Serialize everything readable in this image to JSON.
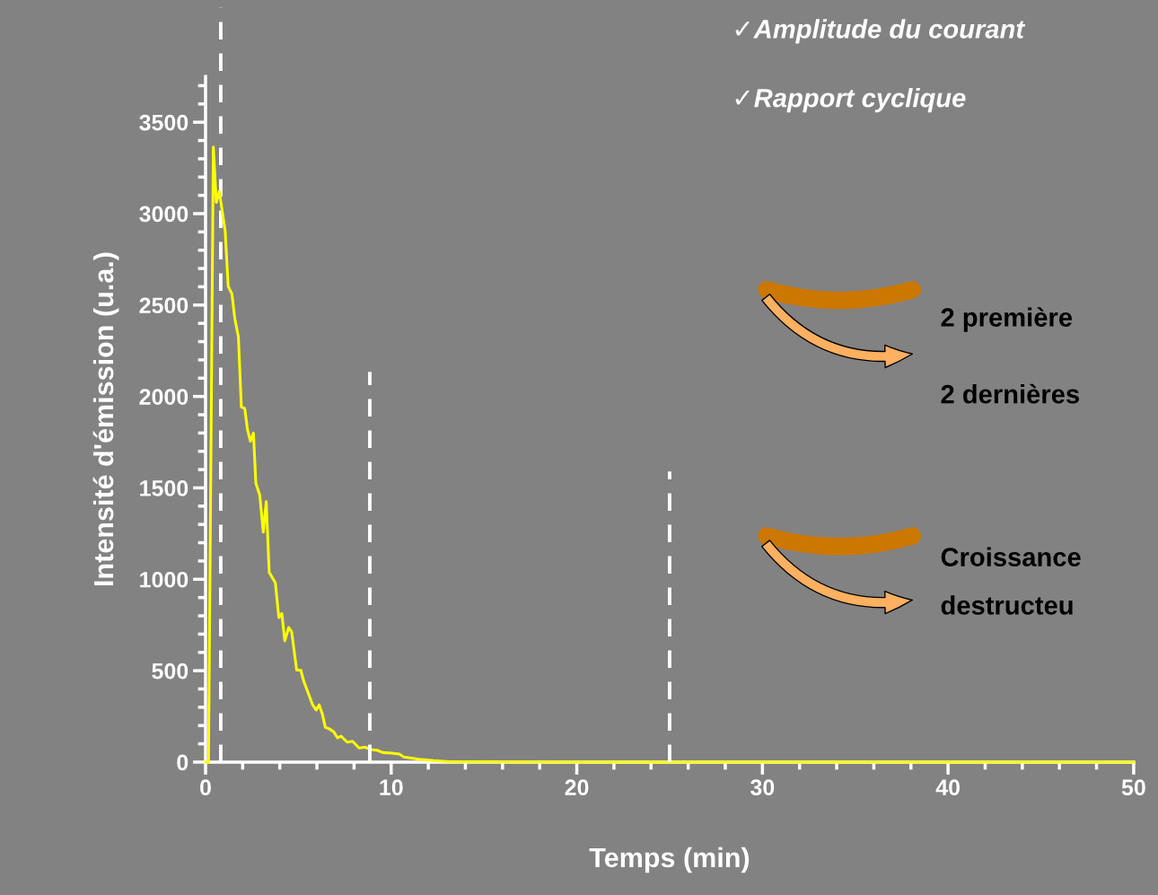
{
  "chart_data": {
    "type": "line",
    "xlabel": "Temps (min)",
    "ylabel": "Intensité d'émission (u.a.)",
    "xlim": [
      0,
      50
    ],
    "xticks": [
      0,
      10,
      20,
      30,
      40,
      50
    ],
    "ylim": [
      0,
      3750
    ],
    "yticks": [
      0,
      500,
      1000,
      1500,
      2000,
      2500,
      3000,
      3500
    ],
    "grid": false,
    "legend": false,
    "marker": "none",
    "series": [
      {
        "color": "#ffff00",
        "line_style": "solid",
        "x": [
          0.01,
          0.16,
          0.42,
          0.58,
          0.74,
          1.06,
          1.22,
          1.42,
          1.58,
          1.77,
          1.93,
          2.11,
          2.26,
          2.42,
          2.58,
          2.71,
          2.92,
          3.11,
          3.27,
          3.43,
          3.76,
          3.95,
          4.11,
          4.27,
          4.48,
          4.64,
          4.91,
          5.13,
          5.29,
          5.77,
          5.96,
          6.12,
          6.29,
          6.45,
          6.66,
          6.9,
          7.11,
          7.3,
          7.63,
          7.92,
          8.27,
          8.59,
          8.91,
          9.24,
          9.56,
          10.04,
          10.44,
          10.68,
          11.49,
          12.3,
          13.1,
          20,
          30,
          40,
          50
        ],
        "values": [
          0,
          0,
          3364,
          3061,
          3123,
          2903,
          2602,
          2561,
          2424,
          2326,
          1942,
          1935,
          1819,
          1755,
          1800,
          1526,
          1461,
          1258,
          1425,
          1038,
          981,
          790,
          813,
          663,
          736,
          712,
          503,
          503,
          443,
          313,
          285,
          313,
          264,
          191,
          182,
          166,
          133,
          142,
          109,
          114,
          77,
          82,
          68,
          65,
          52,
          49,
          44,
          28,
          16,
          8,
          2,
          0,
          0,
          0,
          0
        ]
      },
      {
        "color": "#ffffff",
        "line_style": "dashed",
        "x": [
          8.85,
          8.85
        ],
        "values": [
          0,
          2135
        ]
      },
      {
        "color": "#ffffff",
        "line_style": "dashed",
        "x": [
          25,
          25
        ],
        "values": [
          0,
          1590
        ]
      }
    ],
    "ref_lines": [
      {
        "axis": "x",
        "value": 0.82,
        "color": "#ffffff",
        "line_style": "dashed"
      }
    ],
    "annotations": [
      "✓Amplitude du courant",
      "✓Rapport cyclique",
      "2 première",
      "2 dernières",
      "Croissance",
      "destructeu"
    ]
  }
}
